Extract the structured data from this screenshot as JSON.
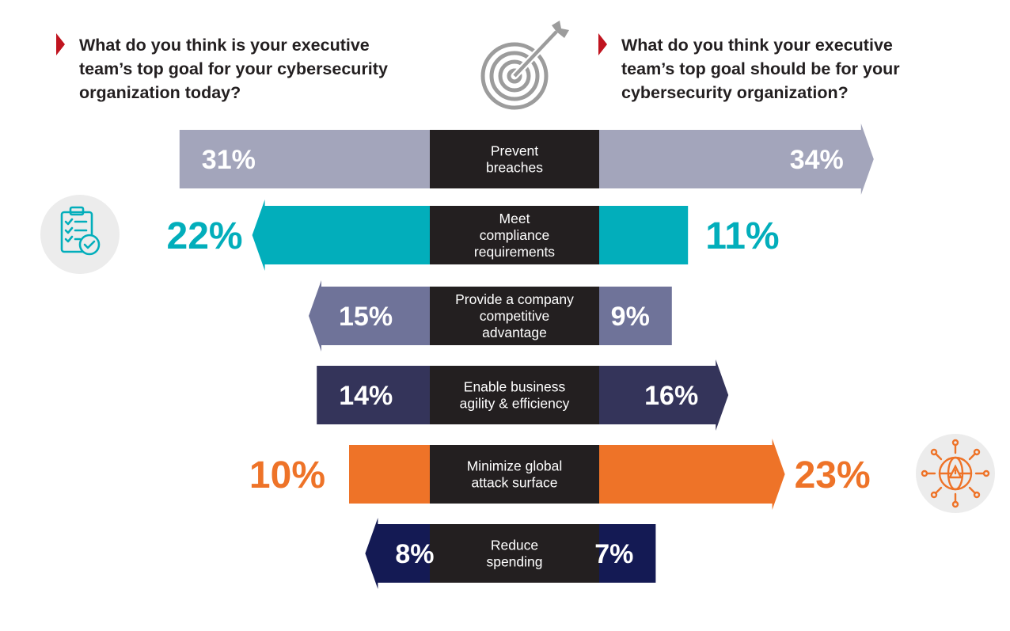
{
  "question_left": "What do you think is your executive\nteam’s top goal for your cybersecurity\norganization today?",
  "question_right": "What do you think your executive\nteam’s top goal should be for your\ncybersecurity organization?",
  "colors": {
    "marker": "#c0141f",
    "label_box": "#231f20",
    "question_text": "#231f20"
  },
  "icons": {
    "center": "target-arrow-icon",
    "compliance": "checklist-clipboard-icon",
    "attack_surface": "globe-alert-network-icon"
  },
  "chart_data": {
    "type": "bar",
    "layout": "diverging-butterfly",
    "categories": [
      "Prevent\nbreaches",
      "Meet\ncompliance\nrequirements",
      "Provide a company\ncompetitive\nadvantage",
      "Enable business\nagility & efficiency",
      "Minimize global\nattack surface",
      "Reduce\nspending"
    ],
    "series": [
      {
        "values": [
          31,
          22,
          15,
          14,
          10,
          8
        ]
      },
      {
        "values": [
          34,
          11,
          9,
          16,
          23,
          7
        ]
      }
    ],
    "value_labels_left": [
      "31%",
      "22%",
      "15%",
      "14%",
      "10%",
      "8%"
    ],
    "value_labels_right": [
      "34%",
      "11%",
      "9%",
      "16%",
      "23%",
      "7%"
    ],
    "arrow_direction": [
      "right",
      "left",
      "left",
      "right",
      "right",
      "left"
    ],
    "bar_colors": [
      "#a3a5bb",
      "#02aebb",
      "#6f7399",
      "#34345a",
      "#ee7328",
      "#141a54"
    ],
    "label_outside": [
      false,
      true,
      false,
      false,
      true,
      false
    ],
    "label_outside_color": [
      "",
      "#02aebb",
      "",
      "",
      "#ee7328",
      ""
    ]
  }
}
